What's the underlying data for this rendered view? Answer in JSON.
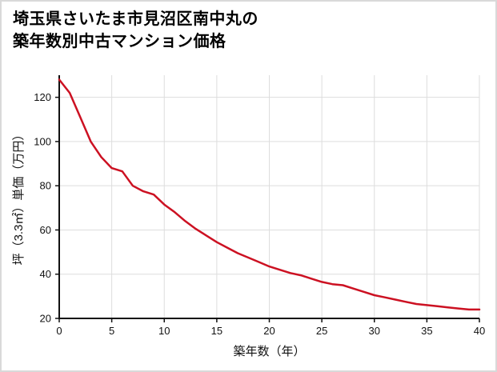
{
  "page": {
    "title_line1": "埼玉県さいたま市見沼区南中丸の",
    "title_line2": "築年数別中古マンション価格"
  },
  "chart_data": {
    "type": "line",
    "title": "埼玉県さいたま市見沼区南中丸の築年数別中古マンション価格",
    "xlabel": "築年数（年）",
    "ylabel": "坪（3.3㎡）単価（万円）",
    "x": [
      0,
      1,
      2,
      3,
      4,
      5,
      6,
      7,
      8,
      9,
      10,
      11,
      12,
      13,
      14,
      15,
      16,
      17,
      18,
      19,
      20,
      21,
      22,
      23,
      24,
      25,
      26,
      27,
      28,
      29,
      30,
      31,
      32,
      33,
      34,
      35,
      36,
      37,
      38,
      39,
      40
    ],
    "values": [
      128,
      122,
      111,
      100,
      93,
      88,
      86.5,
      80,
      77.5,
      76,
      71.5,
      68,
      64,
      60.5,
      57.5,
      54.5,
      52,
      49.5,
      47.5,
      45.5,
      43.5,
      42,
      40.5,
      39.5,
      38,
      36.5,
      35.5,
      35,
      33.5,
      32,
      30.5,
      29.5,
      28.5,
      27.5,
      26.5,
      26,
      25.5,
      25,
      24.5,
      24,
      24
    ],
    "xlim": [
      0,
      40
    ],
    "ylim": [
      20,
      130
    ],
    "xticks": [
      0,
      5,
      10,
      15,
      20,
      25,
      30,
      35,
      40
    ],
    "yticks": [
      20,
      40,
      60,
      80,
      100,
      120
    ],
    "grid": true,
    "legend_position": "none",
    "line_color": "#cc1122",
    "grid_color": "#dddddd",
    "axis_color": "#111111",
    "background_color": "#ffffff"
  }
}
